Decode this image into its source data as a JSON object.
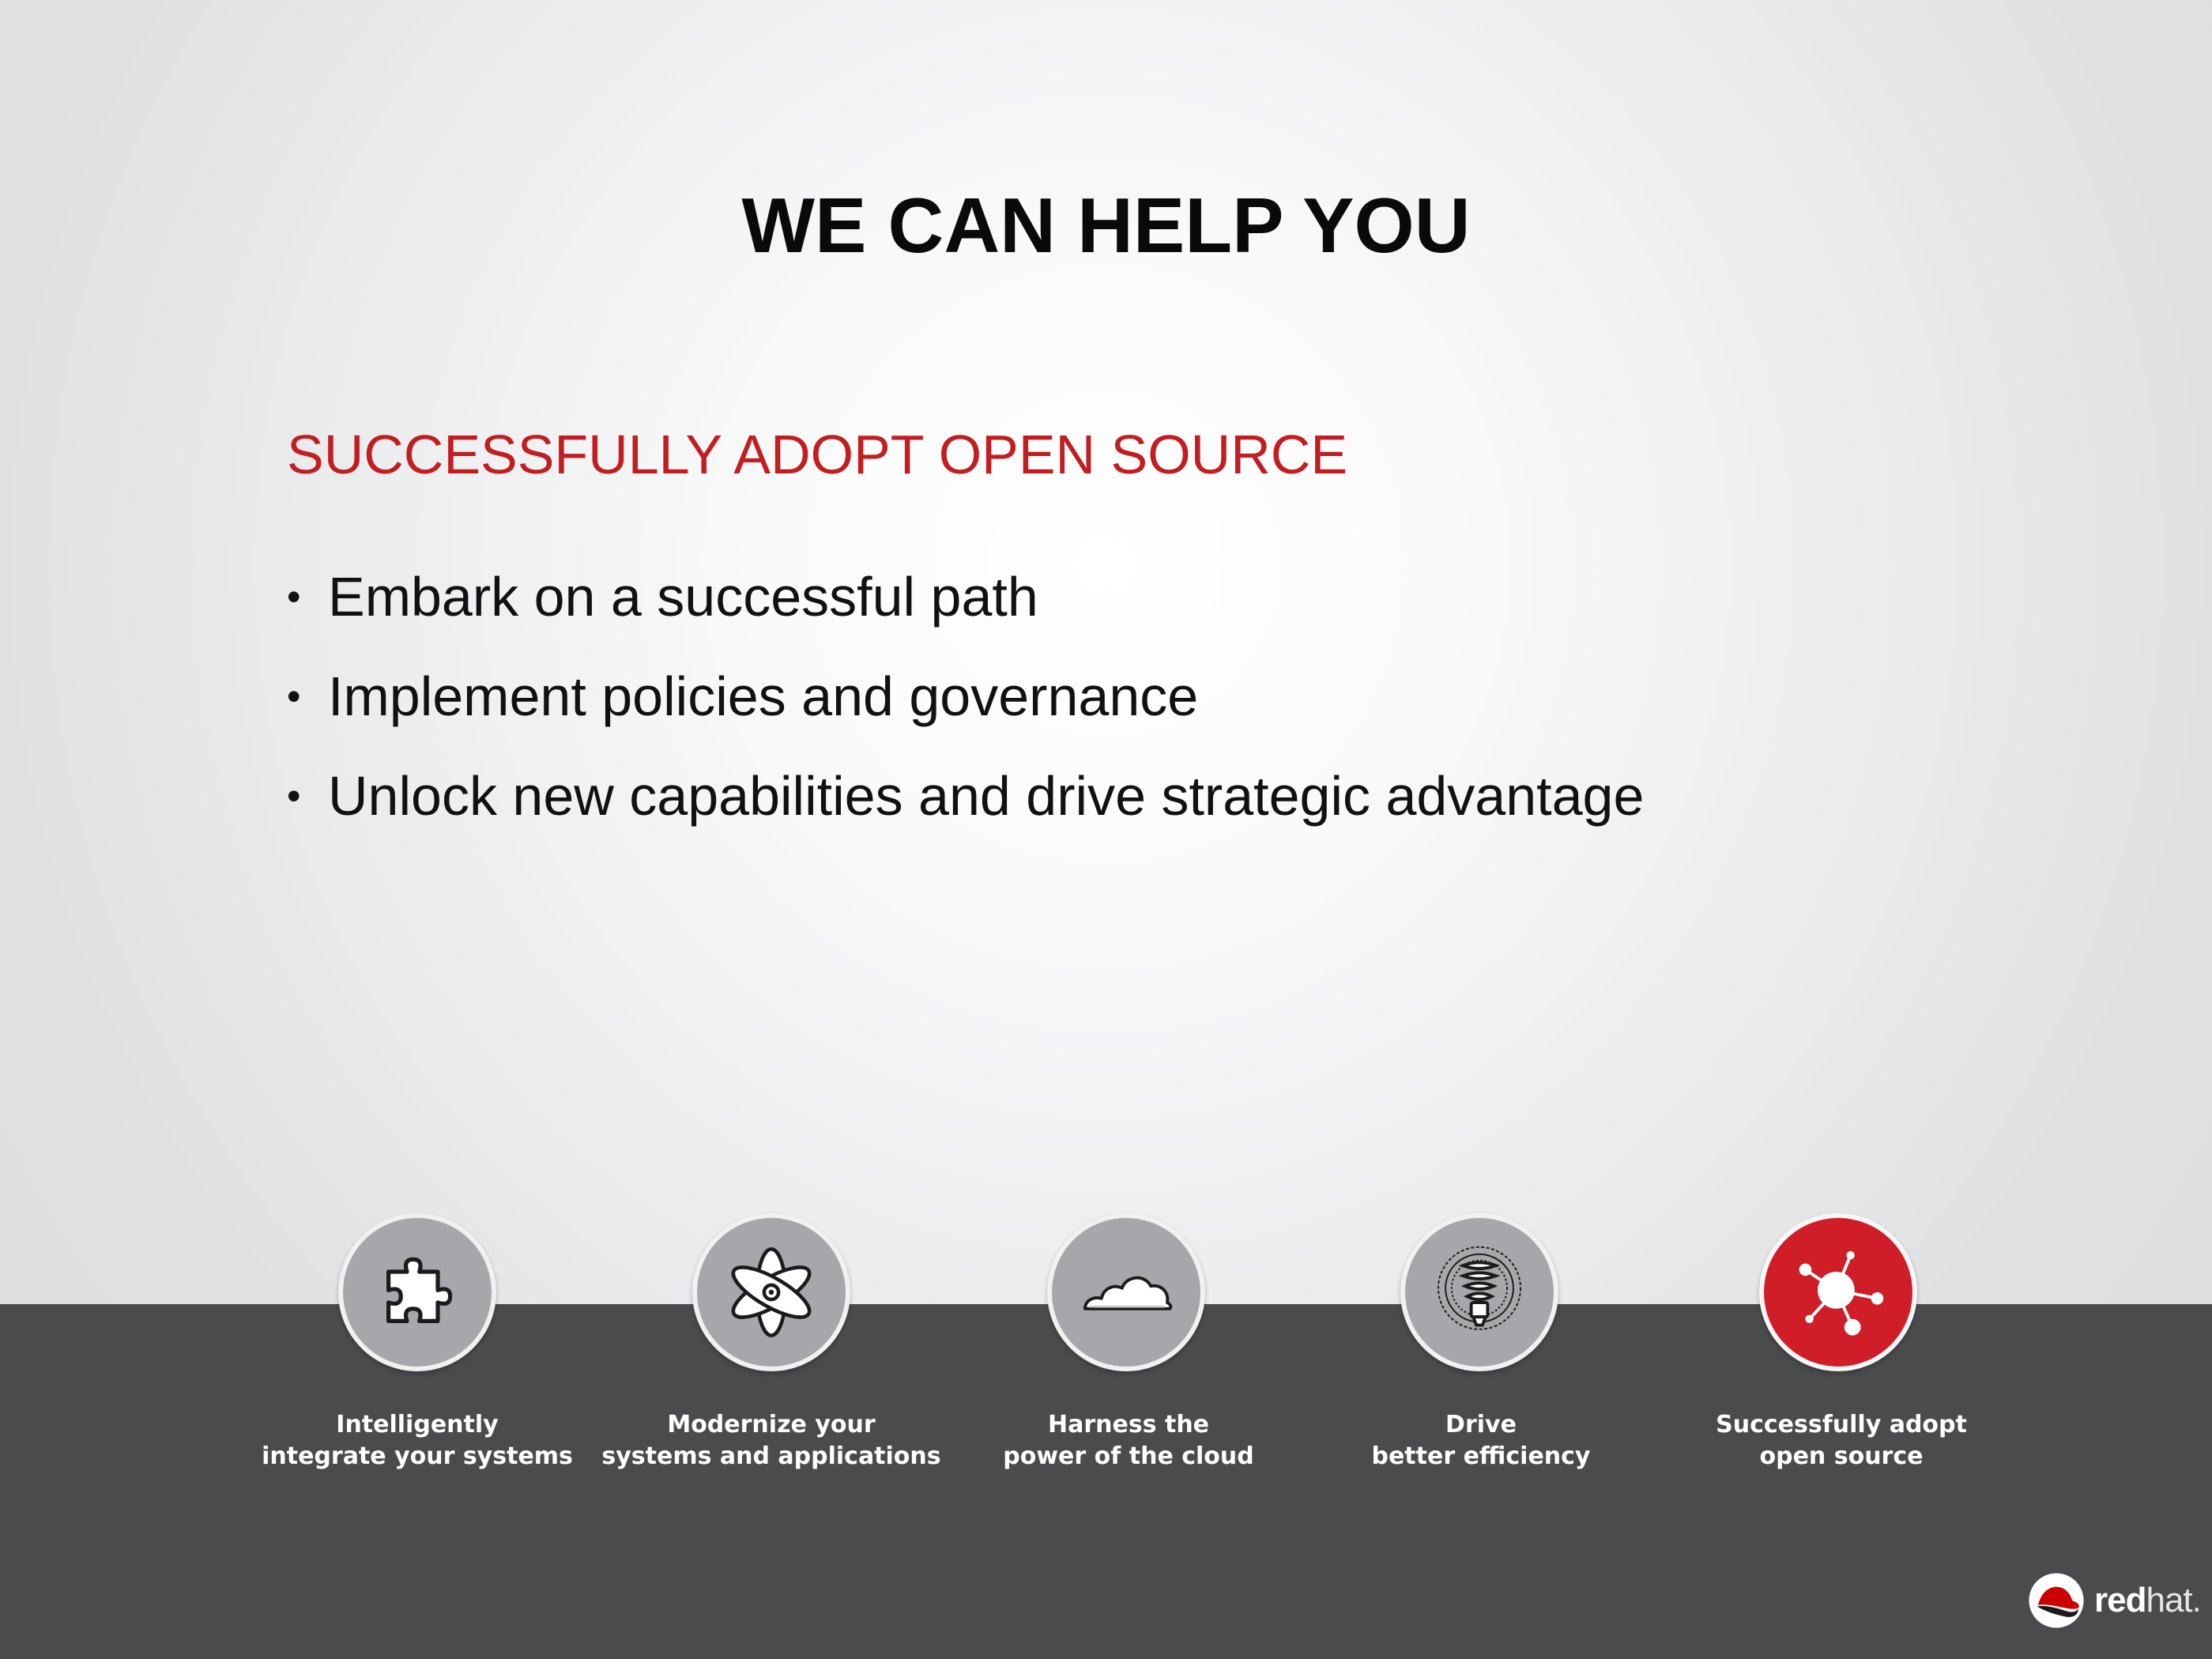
{
  "slide": {
    "title": "WE CAN HELP YOU",
    "subtitle": "SUCCESSFULLY ADOPT OPEN SOURCE",
    "bullets": [
      "Embark on a successful path",
      "Implement policies and governance",
      "Unlock new capabilities and drive strategic advantage"
    ],
    "bullet_marker": "•"
  },
  "pillars": [
    {
      "icon": "puzzle-icon",
      "line1": "Intelligently",
      "line2": "integrate your systems",
      "active": false
    },
    {
      "icon": "atom-icon",
      "line1": "Modernize your",
      "line2": "systems and applications",
      "active": false
    },
    {
      "icon": "cloud-icon",
      "line1": "Harness the",
      "line2": "power of the cloud",
      "active": false
    },
    {
      "icon": "lightbulb-icon",
      "line1": "Drive",
      "line2": "better efficiency",
      "active": false
    },
    {
      "icon": "network-nodes-icon",
      "line1": "Successfully adopt",
      "line2": "open source",
      "active": true
    }
  ],
  "logo": {
    "word_bold": "red",
    "word_light": "hat.",
    "icon": "redhat-shadowman-icon"
  },
  "colors": {
    "accent_red": "#c21e22",
    "icon_red": "#cf1e27",
    "band_gray": "#4a4b4d",
    "icon_gray": "#a6a7aa"
  }
}
